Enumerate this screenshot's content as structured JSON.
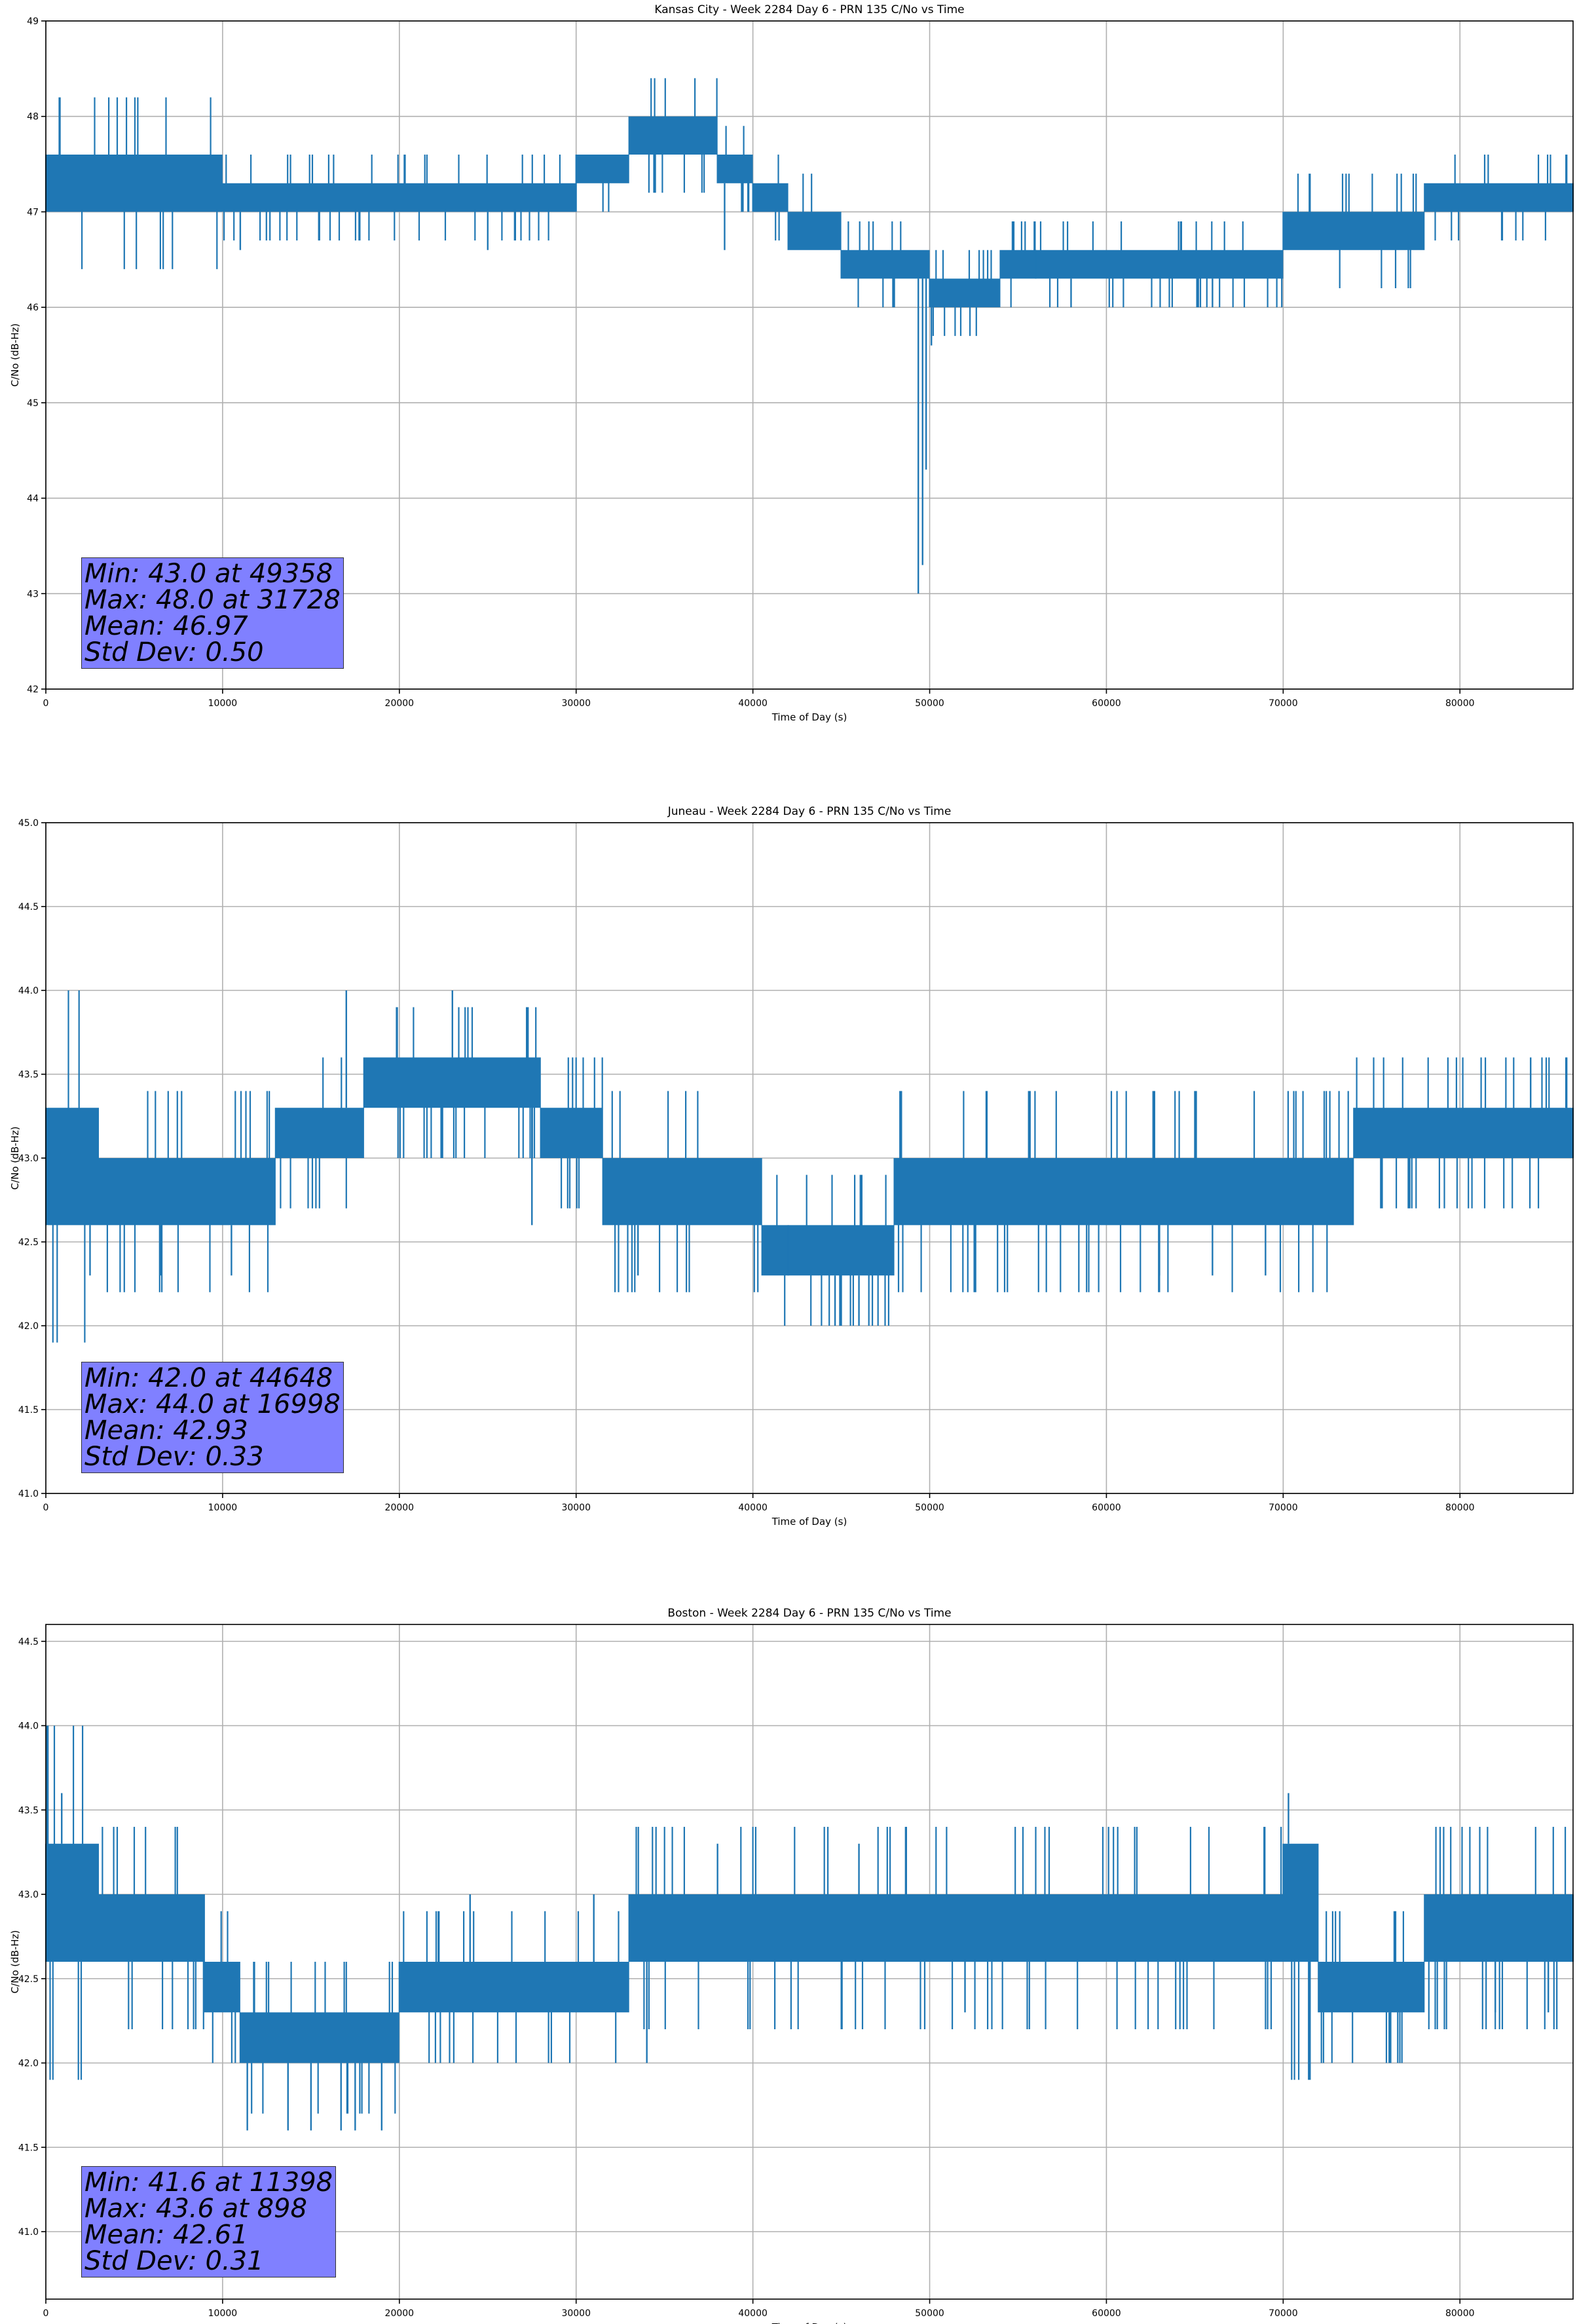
{
  "figure": {
    "background": "#ffffff"
  },
  "chart_data": [
    {
      "type": "line",
      "title": "Kansas City - Week 2284 Day 6 - PRN 135 C/No vs Time",
      "xlabel": "Time of Day (s)",
      "ylabel": "C/No (dB-Hz)",
      "xlim": [
        0,
        86400
      ],
      "ylim": [
        42,
        49
      ],
      "xticks": [
        0,
        10000,
        20000,
        30000,
        40000,
        50000,
        60000,
        70000,
        80000
      ],
      "xtick_labels": [
        "0",
        "10000",
        "20000",
        "30000",
        "40000",
        "50000",
        "60000",
        "70000",
        "80000"
      ],
      "yticks": [
        42,
        43,
        44,
        45,
        46,
        47,
        48,
        49
      ],
      "ytick_labels": [
        "42",
        "43",
        "44",
        "45",
        "46",
        "47",
        "48",
        "49"
      ],
      "grid": true,
      "color": "#1f77b4",
      "series": [
        {
          "band": [
            [
              0,
              47.0,
              47.6
            ],
            [
              10000,
              47.0,
              47.3
            ],
            [
              20000,
              47.0,
              47.3
            ],
            [
              30000,
              47.3,
              47.6
            ],
            [
              33000,
              47.6,
              48.0
            ],
            [
              38000,
              47.3,
              47.6
            ],
            [
              40000,
              47.0,
              47.3
            ],
            [
              42000,
              46.6,
              47.0
            ],
            [
              45000,
              46.3,
              46.6
            ],
            [
              48000,
              46.3,
              46.6
            ],
            [
              50000,
              46.0,
              46.3
            ],
            [
              54000,
              46.3,
              46.6
            ],
            [
              60000,
              46.3,
              46.6
            ],
            [
              65000,
              46.3,
              46.6
            ],
            [
              70000,
              46.6,
              47.0
            ],
            [
              76000,
              46.6,
              47.0
            ],
            [
              78000,
              47.0,
              47.3
            ],
            [
              85000,
              47.0,
              47.3
            ],
            [
              86400,
              47.3,
              47.6
            ]
          ],
          "spikes": [
            [
              49358,
              43.0
            ],
            [
              49600,
              43.3
            ],
            [
              49800,
              44.3
            ],
            [
              50100,
              45.6
            ],
            [
              38400,
              46.6
            ],
            [
              25000,
              46.6
            ],
            [
              56000,
              46.3
            ],
            [
              58000,
              46.0
            ],
            [
              66000,
              46.0
            ],
            [
              11000,
              46.6
            ],
            [
              69500,
              46.6
            ]
          ]
        }
      ],
      "stats": [
        "Min: 43.0 at 49358",
        "Max: 48.0 at 31728",
        "Mean: 46.97",
        "Std Dev: 0.50"
      ]
    },
    {
      "type": "line",
      "title": "Juneau - Week 2284 Day 6 - PRN 135 C/No vs Time",
      "xlabel": "Time of Day (s)",
      "ylabel": "C/No (dB-Hz)",
      "xlim": [
        0,
        86400
      ],
      "ylim": [
        41,
        45
      ],
      "xticks": [
        0,
        10000,
        20000,
        30000,
        40000,
        50000,
        60000,
        70000,
        80000
      ],
      "xtick_labels": [
        "0",
        "10000",
        "20000",
        "30000",
        "40000",
        "50000",
        "60000",
        "70000",
        "80000"
      ],
      "yticks": [
        41.0,
        41.5,
        42.0,
        42.5,
        43.0,
        43.5,
        44.0,
        44.5,
        45.0
      ],
      "ytick_labels": [
        "41.0",
        "41.5",
        "42.0",
        "42.5",
        "43.0",
        "43.5",
        "44.0",
        "44.5",
        "45.0"
      ],
      "grid": true,
      "color": "#1f77b4",
      "series": [
        {
          "band": [
            [
              0,
              42.6,
              43.3
            ],
            [
              3000,
              42.6,
              43.0
            ],
            [
              8000,
              42.6,
              43.0
            ],
            [
              12500,
              42.6,
              43.0
            ],
            [
              13000,
              43.0,
              43.3
            ],
            [
              17000,
              43.0,
              43.3
            ],
            [
              18000,
              43.3,
              43.6
            ],
            [
              27000,
              43.3,
              43.6
            ],
            [
              28000,
              43.0,
              43.3
            ],
            [
              31000,
              43.0,
              43.3
            ],
            [
              31500,
              42.6,
              43.0
            ],
            [
              40000,
              42.6,
              43.0
            ],
            [
              40500,
              42.3,
              42.6
            ],
            [
              45000,
              42.3,
              42.6
            ],
            [
              48000,
              42.6,
              43.0
            ],
            [
              55000,
              42.6,
              43.0
            ],
            [
              65000,
              42.6,
              43.0
            ],
            [
              70000,
              42.6,
              43.0
            ],
            [
              74000,
              43.0,
              43.3
            ],
            [
              79000,
              43.0,
              43.3
            ],
            [
              81000,
              43.0,
              43.3
            ],
            [
              86400,
              43.0,
              43.3
            ]
          ],
          "spikes": [
            [
              16998,
              44.0
            ],
            [
              23000,
              44.0
            ],
            [
              44648,
              42.0
            ],
            [
              46000,
              42.0
            ],
            [
              27500,
              42.6
            ],
            [
              2500,
              42.3
            ],
            [
              6500,
              42.3
            ],
            [
              10500,
              42.3
            ],
            [
              33500,
              42.3
            ],
            [
              42000,
              42.3
            ],
            [
              63000,
              42.3
            ],
            [
              66000,
              42.3
            ],
            [
              69000,
              42.3
            ],
            [
              84000,
              43.6
            ],
            [
              86000,
              43.6
            ]
          ]
        }
      ],
      "stats": [
        "Min: 42.0 at 44648",
        "Max: 44.0 at 16998",
        "Mean: 42.93",
        "Std Dev: 0.33"
      ]
    },
    {
      "type": "line",
      "title": "Boston - Week 2284 Day 6 - PRN 135 C/No vs Time",
      "xlabel": "Time of Day (s)",
      "ylabel": "C/No (dB-Hz)",
      "xlim": [
        0,
        86400
      ],
      "ylim": [
        40.6,
        44.6
      ],
      "xticks": [
        0,
        10000,
        20000,
        30000,
        40000,
        50000,
        60000,
        70000,
        80000
      ],
      "xtick_labels": [
        "0",
        "10000",
        "20000",
        "30000",
        "40000",
        "50000",
        "60000",
        "70000",
        "80000"
      ],
      "yticks": [
        41.0,
        41.5,
        42.0,
        42.5,
        43.0,
        43.5,
        44.0,
        44.5
      ],
      "ytick_labels": [
        "41.0",
        "41.5",
        "42.0",
        "42.5",
        "43.0",
        "43.5",
        "44.0",
        "44.5"
      ],
      "grid": true,
      "color": "#1f77b4",
      "series": [
        {
          "band": [
            [
              0,
              42.6,
              43.3
            ],
            [
              3000,
              42.6,
              43.0
            ],
            [
              8000,
              42.6,
              43.0
            ],
            [
              9000,
              42.3,
              42.6
            ],
            [
              11000,
              42.0,
              42.3
            ],
            [
              19000,
              42.0,
              42.3
            ],
            [
              20000,
              42.3,
              42.6
            ],
            [
              28000,
              42.3,
              42.6
            ],
            [
              30000,
              42.3,
              42.6
            ],
            [
              33000,
              42.6,
              43.0
            ],
            [
              36000,
              42.6,
              43.0
            ],
            [
              50000,
              42.6,
              43.0
            ],
            [
              55000,
              42.6,
              43.0
            ],
            [
              65000,
              42.6,
              43.0
            ],
            [
              69000,
              42.6,
              43.0
            ],
            [
              70000,
              42.6,
              43.3
            ],
            [
              72000,
              42.3,
              42.6
            ],
            [
              77000,
              42.3,
              42.6
            ],
            [
              78000,
              42.6,
              43.0
            ],
            [
              86400,
              42.6,
              43.0
            ]
          ],
          "spikes": [
            [
              898,
              43.6
            ],
            [
              70300,
              43.6
            ],
            [
              11398,
              41.6
            ],
            [
              13700,
              41.6
            ],
            [
              15000,
              41.6
            ],
            [
              16700,
              41.6
            ],
            [
              17500,
              41.6
            ],
            [
              19000,
              41.6
            ],
            [
              76000,
              42.0
            ],
            [
              34000,
              42.0
            ],
            [
              24000,
              43.0
            ],
            [
              31000,
              43.0
            ],
            [
              38000,
              43.3
            ],
            [
              46000,
              43.3
            ],
            [
              52000,
              42.3
            ],
            [
              82000,
              42.3
            ],
            [
              85000,
              42.3
            ]
          ]
        }
      ],
      "stats": [
        "Min: 41.6 at 11398",
        "Max: 43.6 at 898",
        "Mean: 42.61",
        "Std Dev: 0.31"
      ]
    }
  ]
}
